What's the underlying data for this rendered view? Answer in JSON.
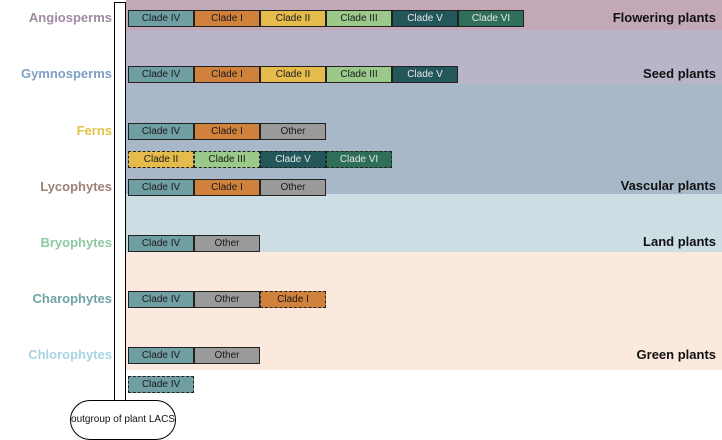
{
  "colors": {
    "clade_iv": "#6f9fa3",
    "clade_i": "#d0813c",
    "clade_ii": "#e5bb4c",
    "clade_iii": "#9bc98a",
    "clade_v": "#24575c",
    "clade_vi": "#2f6f5a",
    "other": "#9a9a9a"
  },
  "bands": [
    {
      "label": "Flowering plants",
      "color": "#c3a9b7"
    },
    {
      "label": "Seed plants",
      "color": "#b9b4c8"
    },
    {
      "label": "Vascular plants",
      "color": "#a8b8c8"
    },
    {
      "label": "Land plants",
      "color": "#cddde4"
    },
    {
      "label": "Green plants",
      "color": "#fbe9dd"
    }
  ],
  "groups": [
    {
      "label": "Angiosperms",
      "color": "#a08aa3"
    },
    {
      "label": "Gymnosperms",
      "color": "#7f9fc3"
    },
    {
      "label": "Ferns",
      "color": "#e4c247"
    },
    {
      "label": "Lycophytes",
      "color": "#9c8377"
    },
    {
      "label": "Bryophytes",
      "color": "#8cc99f"
    },
    {
      "label": "Charophytes",
      "color": "#6fa4a3"
    },
    {
      "label": "Chlorophytes",
      "color": "#a6d4e1"
    }
  ],
  "rows": [
    {
      "boxes": [
        {
          "label": "Clade IV",
          "key": "clade_iv"
        },
        {
          "label": "Clade I",
          "key": "clade_i"
        },
        {
          "label": "Clade II",
          "key": "clade_ii"
        },
        {
          "label": "Clade III",
          "key": "clade_iii"
        },
        {
          "label": "Clade V",
          "key": "clade_v"
        },
        {
          "label": "Clade VI",
          "key": "clade_vi"
        }
      ]
    },
    {
      "boxes": [
        {
          "label": "Clade IV",
          "key": "clade_iv"
        },
        {
          "label": "Clade I",
          "key": "clade_i"
        },
        {
          "label": "Clade II",
          "key": "clade_ii"
        },
        {
          "label": "Clade III",
          "key": "clade_iii"
        },
        {
          "label": "Clade V",
          "key": "clade_v"
        }
      ]
    },
    {
      "boxes": [
        {
          "label": "Clade IV",
          "key": "clade_iv"
        },
        {
          "label": "Clade I",
          "key": "clade_i"
        },
        {
          "label": "Other",
          "key": "other"
        }
      ]
    },
    {
      "boxes": [
        {
          "label": "Clade II",
          "key": "clade_ii",
          "dashed": true
        },
        {
          "label": "Clade III",
          "key": "clade_iii",
          "dashed": true
        },
        {
          "label": "Clade V",
          "key": "clade_v",
          "dashed": true
        },
        {
          "label": "Clade VI",
          "key": "clade_vi",
          "dashed": true
        }
      ]
    },
    {
      "boxes": [
        {
          "label": "Clade IV",
          "key": "clade_iv"
        },
        {
          "label": "Clade I",
          "key": "clade_i"
        },
        {
          "label": "Other",
          "key": "other"
        }
      ]
    },
    {
      "boxes": [
        {
          "label": "Clade IV",
          "key": "clade_iv"
        },
        {
          "label": "Other",
          "key": "other"
        }
      ]
    },
    {
      "boxes": [
        {
          "label": "Clade IV",
          "key": "clade_iv"
        },
        {
          "label": "Other",
          "key": "other"
        },
        {
          "label": "Clade I",
          "key": "clade_i",
          "dashed": true
        }
      ]
    },
    {
      "boxes": [
        {
          "label": "Clade IV",
          "key": "clade_iv"
        },
        {
          "label": "Other",
          "key": "other"
        }
      ]
    },
    {
      "boxes": [
        {
          "label": "Clade IV",
          "key": "clade_iv",
          "dashed": true
        }
      ]
    }
  ],
  "outgroup": "outgroup of plant LACS"
}
